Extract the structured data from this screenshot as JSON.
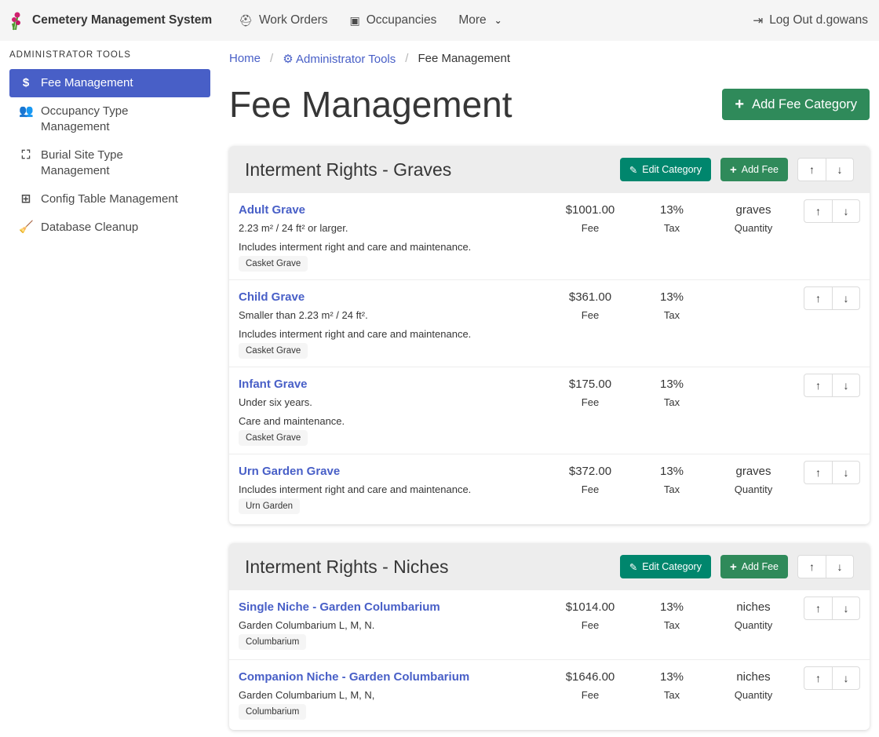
{
  "nav": {
    "brand": "Cemetery Management System",
    "items": [
      {
        "label": "Work Orders",
        "icon": "hard-hat-icon"
      },
      {
        "label": "Occupancies",
        "icon": "portrait-icon"
      },
      {
        "label": "More",
        "icon": "chevron-down-icon"
      }
    ],
    "logout": "Log Out d.gowans"
  },
  "sidebar": {
    "label": "Administrator Tools",
    "items": [
      {
        "label": "Fee Management",
        "icon": "dollar-icon",
        "active": true
      },
      {
        "label": "Occupancy Type Management",
        "icon": "users-icon"
      },
      {
        "label": "Burial Site Type Management",
        "icon": "vector-square-icon"
      },
      {
        "label": "Config Table Management",
        "icon": "table-icon"
      },
      {
        "label": "Database Cleanup",
        "icon": "broom-icon"
      }
    ]
  },
  "breadcrumb": {
    "home": "Home",
    "admin": "Administrator Tools",
    "current": "Fee Management"
  },
  "page": {
    "title": "Fee Management",
    "add_category": "Add Fee Category"
  },
  "labels": {
    "edit_category": "Edit Category",
    "add_fee": "Add Fee",
    "fee": "Fee",
    "tax": "Tax",
    "quantity": "Quantity"
  },
  "colors": {
    "primary": "#485fc7",
    "success": "#2f8a5a",
    "edit": "#00866d"
  },
  "categories": [
    {
      "title": "Interment Rights - Graves",
      "fees": [
        {
          "name": "Adult Grave",
          "desc": [
            "2.23 m² / 24 ft² or larger.",
            "Includes interment right and care and maintenance."
          ],
          "tag": "Casket Grave",
          "fee": "$1001.00",
          "tax": "13%",
          "qty": "graves"
        },
        {
          "name": "Child Grave",
          "desc": [
            "Smaller than 2.23 m² / 24 ft².",
            "Includes interment right and care and maintenance."
          ],
          "tag": "Casket Grave",
          "fee": "$361.00",
          "tax": "13%",
          "qty": ""
        },
        {
          "name": "Infant Grave",
          "desc": [
            "Under six years.",
            "Care and maintenance."
          ],
          "tag": "Casket Grave",
          "fee": "$175.00",
          "tax": "13%",
          "qty": ""
        },
        {
          "name": "Urn Garden Grave",
          "desc": [
            "Includes interment right and care and maintenance."
          ],
          "tag": "Urn Garden",
          "fee": "$372.00",
          "tax": "13%",
          "qty": "graves"
        }
      ]
    },
    {
      "title": "Interment Rights - Niches",
      "fees": [
        {
          "name": "Single Niche - Garden Columbarium",
          "desc": [
            "Garden Columbarium L, M, N."
          ],
          "tag": "Columbarium",
          "fee": "$1014.00",
          "tax": "13%",
          "qty": "niches"
        },
        {
          "name": "Companion Niche - Garden Columbarium",
          "desc": [
            "Garden Columbarium L, M, N,"
          ],
          "tag": "Columbarium",
          "fee": "$1646.00",
          "tax": "13%",
          "qty": "niches"
        }
      ]
    }
  ]
}
